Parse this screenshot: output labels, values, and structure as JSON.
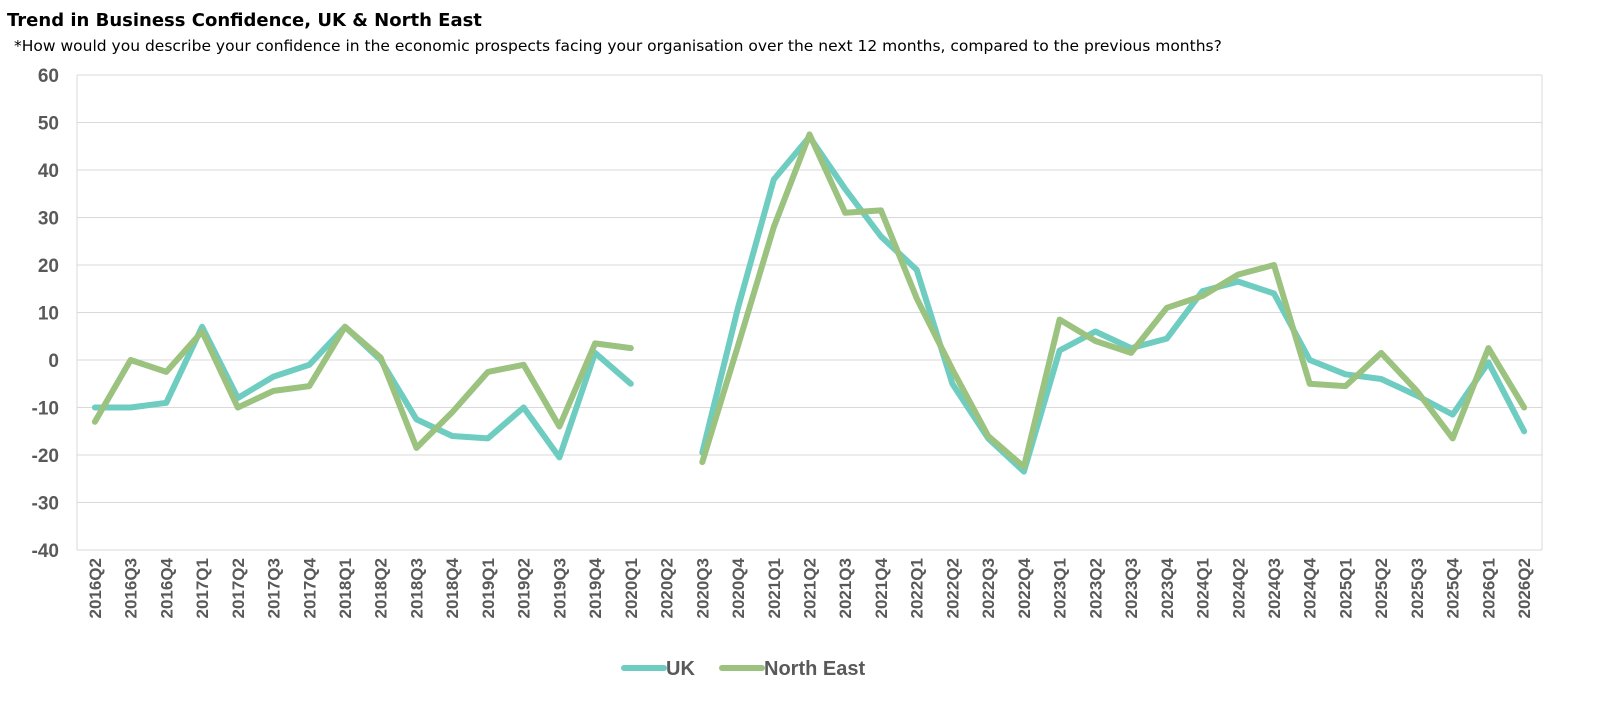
{
  "chart_data": {
    "type": "line",
    "title": "Trend in Business Confidence, UK & North East",
    "subtitle": "*How would you describe your confidence in the economic prospects facing your organisation over the next 12 months, compared to the previous months?",
    "xlabel": "",
    "ylabel": "",
    "ylim": [
      -40,
      60
    ],
    "yticks": [
      60,
      50,
      40,
      30,
      20,
      10,
      0,
      -10,
      -20,
      -30,
      -40
    ],
    "grid": true,
    "legend_position": "bottom",
    "categories": [
      "2016Q2",
      "2016Q3",
      "2016Q4",
      "2017Q1",
      "2017Q2",
      "2017Q3",
      "2017Q4",
      "2018Q1",
      "2018Q2",
      "2018Q3",
      "2018Q4",
      "2019Q1",
      "2019Q2",
      "2019Q3",
      "2019Q4",
      "2020Q1",
      "2020Q2",
      "2020Q3",
      "2020Q4",
      "2021Q1",
      "2021Q2",
      "2021Q3",
      "2021Q4",
      "2022Q1",
      "2022Q2",
      "2022Q3",
      "2022Q4",
      "2023Q1",
      "2023Q2",
      "2023Q3",
      "2023Q4",
      "2024Q1",
      "2024Q2",
      "2024Q3",
      "2024Q4",
      "2025Q1",
      "2025Q2",
      "2025Q3",
      "2025Q4",
      "2026Q1",
      "2026Q2"
    ],
    "series": [
      {
        "name": "UK",
        "color": "#6ECDC0",
        "values": [
          -10,
          -10,
          -9,
          7,
          -8,
          -3.5,
          -1,
          7,
          0,
          -12.5,
          -16,
          -16.5,
          -10,
          -20.5,
          1.5,
          -5,
          null,
          -19.5,
          11,
          38,
          47,
          36,
          26,
          19,
          -5,
          -16.5,
          -23.5,
          2,
          6,
          2.5,
          4.5,
          14.5,
          16.5,
          14,
          0,
          -3,
          -4,
          -7.5,
          -11.5,
          -0.5,
          -15
        ]
      },
      {
        "name": "North East",
        "color": "#9BC27F",
        "values": [
          -13,
          0,
          -2.5,
          6,
          -10,
          -6.5,
          -5.5,
          7,
          0.5,
          -18.5,
          -11,
          -2.5,
          -1,
          -14,
          3.5,
          2.5,
          null,
          -21.5,
          3,
          28,
          47.5,
          31,
          31.5,
          13,
          -2,
          -16,
          -22.5,
          8.5,
          4,
          1.5,
          11,
          13.5,
          18,
          20,
          -5,
          -5.5,
          1.5,
          -6.5,
          -16.5,
          2.5,
          -10
        ]
      }
    ]
  }
}
